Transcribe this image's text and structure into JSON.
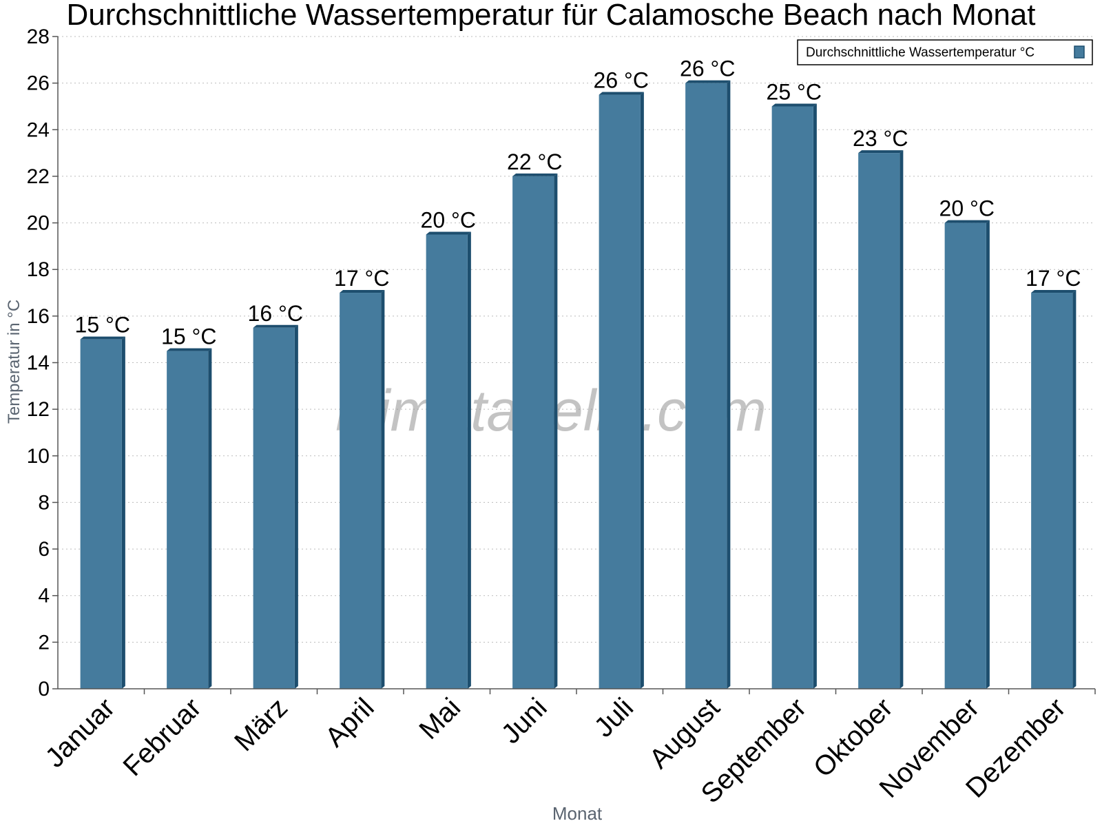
{
  "chart_data": {
    "type": "bar",
    "title": "Durchschnittliche Wassertemperatur für Calamosche Beach nach Monat",
    "xlabel": "Monat",
    "ylabel": "Temperatur in °C",
    "categories": [
      "Januar",
      "Februar",
      "März",
      "April",
      "Mai",
      "Juni",
      "Juli",
      "August",
      "September",
      "Oktober",
      "November",
      "Dezember"
    ],
    "series": [
      {
        "name": "Durchschnittliche Wassertemperatur °C",
        "values": [
          15,
          14.5,
          15.5,
          17,
          19.5,
          22,
          25.5,
          26,
          25,
          23,
          20,
          17
        ],
        "labels": [
          "15 °C",
          "15 °C",
          "16 °C",
          "17 °C",
          "20 °C",
          "22 °C",
          "26 °C",
          "26 °C",
          "25 °C",
          "23 °C",
          "20 °C",
          "17 °C"
        ],
        "color": "#457b9d",
        "edge_color": "#1d4e6e"
      }
    ],
    "ylim": [
      0,
      28
    ],
    "yticks": [
      0,
      2,
      4,
      6,
      8,
      10,
      12,
      14,
      16,
      18,
      20,
      22,
      24,
      26,
      28
    ],
    "grid": true,
    "legend_position": "top-right",
    "watermark": "klimatabelle.com"
  }
}
